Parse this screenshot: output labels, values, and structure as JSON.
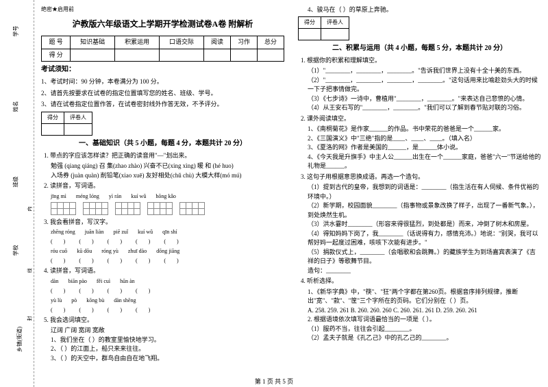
{
  "sidebar": {
    "labels": [
      "学号",
      "姓名",
      "班级",
      "学校",
      "乡镇(街道)"
    ],
    "seal": [
      "内",
      "线",
      "封"
    ]
  },
  "header_mark": "绝密★启用前",
  "title": "沪教版六年级语文上学期开学检测试卷A卷 附解析",
  "score_table": {
    "headers": [
      "题 号",
      "知识基础",
      "积累运用",
      "口语交际",
      "阅读",
      "习作",
      "总分"
    ],
    "row_label": "得 分"
  },
  "notice_title": "考试须知：",
  "notices": [
    "1、考试时间：90 分钟，本卷满分为 100 分。",
    "2、请首先按要求在试卷的指定位置填写您的姓名、班级、学号。",
    "3、请在试卷指定位置作答，在试卷密封线外作答无效，不予评分。"
  ],
  "mini_header": [
    "得分",
    "评卷人"
  ],
  "s1": {
    "title": "一、基础知识（共 5 小题，每题 4 分，本题共计 20 分）",
    "q1": "1. 带点的字应该怎样读？把正确的读音用\"—\"划出来。",
    "q1_items": [
      "勉强 (qiang qiáng)   召 集(zhao zhào)   兴奋不已(xing xìng)   暖 和 (hé huo)",
      "入场券 (juàn quàn)   削铅笔(xiao xuē)   友好相处(chǔ chù)    大模大样(mó mú)"
    ],
    "q2": "2. 读拼音，写词语。",
    "q2_pinyin": [
      "jīng mì",
      "méng lóng",
      "yì rán",
      "kuí wǔ",
      "hōng kǎo"
    ],
    "q3": "3. 我会看拼音，写汉字。",
    "q3_py1": [
      "zhēng róng",
      "juān liàn",
      "piē zuǐ",
      "kuí wǔ",
      "qīn shí"
    ],
    "q3_py2": [
      "róu cuō",
      "kū dōu",
      "róng yù",
      "zhuī dào",
      "dōng jiāng"
    ],
    "q4": "4. 读拼音，写词语。",
    "q4_py1": [
      "dàn",
      "biān pào",
      "fěi cuì",
      "hūn àn"
    ],
    "q4_py2": [
      "yù lù",
      "pò",
      "kōng bù",
      "dàn shēng"
    ],
    "q5": "5. 我会选词填空。",
    "q5_words": "辽阔    广阔    宽阔    宽敞",
    "q5_items": [
      "1、我们坐在（          ）的教室里愉快地学习。",
      "2、（          ）的江面上，船只来来往往。",
      "3、（          ）的天空中，群鸟自由自在地飞翔。"
    ]
  },
  "col2_first": "4、骏马在（          ）的草原上奔驰。",
  "s2": {
    "title": "二、积累与运用（共 4 小题，每题 5 分，本题共计 20 分）",
    "q1": "1. 根据你的积累和理解填空。",
    "q1_items": [
      "（1）\"________，________，________。\"告诉我们世界上没有十全十美的东西。",
      "（2）\"________，________，________，________。\"这句话用来比喻趁劲头大的时候一下子把事情做完。",
      "（3）《七步诗》一诗中，曹植用\"________，________。\"来表达自己悲愤的心情。",
      "（4）从王安石写的\"________，________。\"我们可以了解到春节贴对联的习俗。"
    ],
    "q2": "2. 课外阅读填空。",
    "q2_items": [
      "1、《南桐菊花》是作家______的作品。书中荣花的爸爸是一个______家。",
      "2、《三国演义》中\"三绝\"指的是____、____、____。（填入名）",
      "3、《夏洛的网》作者是美国的______，是______体小说。",
      "4、《今天我是升旗手》中主人公______出生在一个______家庭，爸爸\"六一\"节送给他的礼物是______。"
    ],
    "q3": "3. 这句子用根据意思换成语。再选一个造句。",
    "q3_items": [
      "（1）提到古代的皇帝，我想到的词语是：________（指生活在有人伺候、条件优裕的环境中。）",
      "（2）新学期，校园面貌________（指事物或景象改换了样子，出现了一番新气象。），到处焕然生机。",
      "（3）洪水霎时________（形容来得很猛烈，到处都是）而来，冲倒了树木和房屋。",
      "（4）得知妈妈下岗了，我________（话说得有力，感情充沛。）地说：\"别哭，我可以帮好妈一起度过困难，咳咳下次能有进步。\"",
      "（5）捐款仪式上，________（会唱歌和会跳舞。）的藏族学生为到场嘉宾表演了《吉祥的日子》等歌舞节目。",
      "造句：________"
    ],
    "q4": "4. 听析选择。",
    "q4_items": [
      "1、《新华字典》中，\"筷\"、\"狂\"两个字都在第260页。根据音序排列规律，推断出\"宽\"、\"款\"、\"筐\"三个字所在的页码。它们分别在（     ）页。",
      "A. 258. 259. 261   B. 260. 260. 260   C. 260. 261. 261   D. 259. 260. 261",
      "2. 根据语境依次填写词语最恰当的一项是（     ）。",
      "（1）服药不当，往往会引起________。",
      "（2）孟夫子就是《孔乙己》中的孔乙己的________。"
    ]
  },
  "footer": "第 1 页 共 5 页"
}
